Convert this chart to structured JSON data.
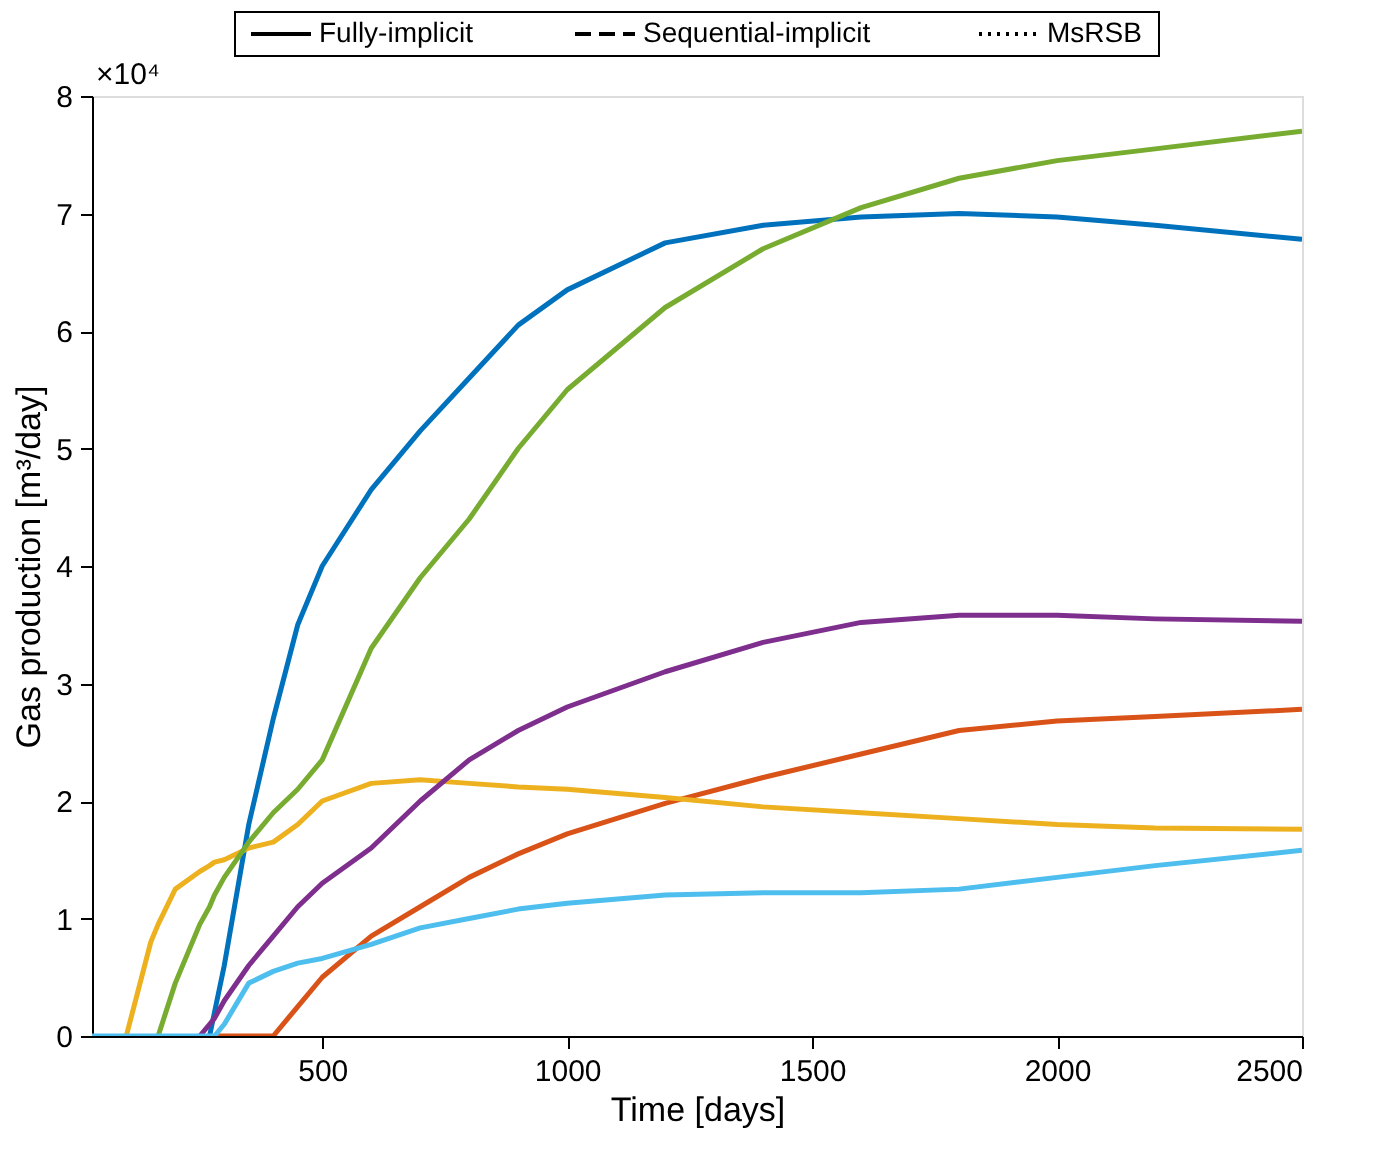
{
  "chart_data": {
    "type": "line",
    "xlabel": "Time [days]",
    "ylabel": "Gas production [m³/day]",
    "annotations": [
      "×10⁴",
      "Fully-implicit",
      "Sequential-implicit",
      "MsRSB"
    ],
    "x": [
      30,
      100,
      150,
      165,
      200,
      250,
      270,
      280,
      300,
      350,
      400,
      450,
      500,
      600,
      700,
      800,
      900,
      1000,
      1200,
      1400,
      1600,
      1800,
      2000,
      2200,
      2500
    ],
    "xlim": [
      30,
      2500
    ],
    "xticks": [
      500,
      1000,
      1500,
      2000,
      2500
    ],
    "ylim": [
      0,
      8
    ],
    "yticks": [
      0,
      1,
      2,
      3,
      4,
      5,
      6,
      7,
      8
    ],
    "grid": false,
    "line_style": "solid",
    "series": [
      {
        "color": "#0072bd",
        "values": [
          null,
          null,
          null,
          null,
          null,
          null,
          0,
          0.2,
          0.6,
          1.8,
          2.7,
          3.5,
          4.0,
          4.65,
          5.15,
          5.6,
          6.05,
          6.35,
          6.75,
          6.9,
          6.97,
          7.0,
          6.97,
          6.9,
          6.78
        ]
      },
      {
        "color": "#d95319",
        "values": [
          null,
          null,
          null,
          null,
          null,
          null,
          null,
          0,
          0,
          0,
          0,
          0.25,
          0.5,
          0.85,
          1.1,
          1.35,
          1.55,
          1.72,
          1.98,
          2.2,
          2.4,
          2.6,
          2.68,
          2.72,
          2.78
        ]
      },
      {
        "color": "#edb120",
        "values": [
          null,
          0,
          0.8,
          0.95,
          1.25,
          1.4,
          1.45,
          1.48,
          1.5,
          1.6,
          1.65,
          1.8,
          2.0,
          2.15,
          2.18,
          2.15,
          2.12,
          2.1,
          2.03,
          1.95,
          1.9,
          1.85,
          1.8,
          1.77,
          1.76
        ]
      },
      {
        "color": "#7e2f8e",
        "values": [
          null,
          null,
          null,
          null,
          null,
          0,
          0.1,
          0.15,
          0.3,
          0.6,
          0.85,
          1.1,
          1.3,
          1.6,
          2.0,
          2.35,
          2.6,
          2.8,
          3.1,
          3.35,
          3.52,
          3.58,
          3.58,
          3.55,
          3.53
        ]
      },
      {
        "color": "#77ac30",
        "values": [
          null,
          null,
          null,
          0,
          0.45,
          0.95,
          1.1,
          1.2,
          1.35,
          1.65,
          1.9,
          2.1,
          2.35,
          3.3,
          3.9,
          4.4,
          5.0,
          5.5,
          6.2,
          6.7,
          7.05,
          7.3,
          7.45,
          7.55,
          7.7
        ]
      },
      {
        "color": "#4dbeee",
        "values": [
          0,
          0,
          0,
          0,
          0,
          0,
          0,
          0,
          0.1,
          0.45,
          0.55,
          0.62,
          0.66,
          0.78,
          0.92,
          1.0,
          1.08,
          1.13,
          1.2,
          1.22,
          1.22,
          1.25,
          1.35,
          1.45,
          1.58
        ]
      }
    ]
  }
}
